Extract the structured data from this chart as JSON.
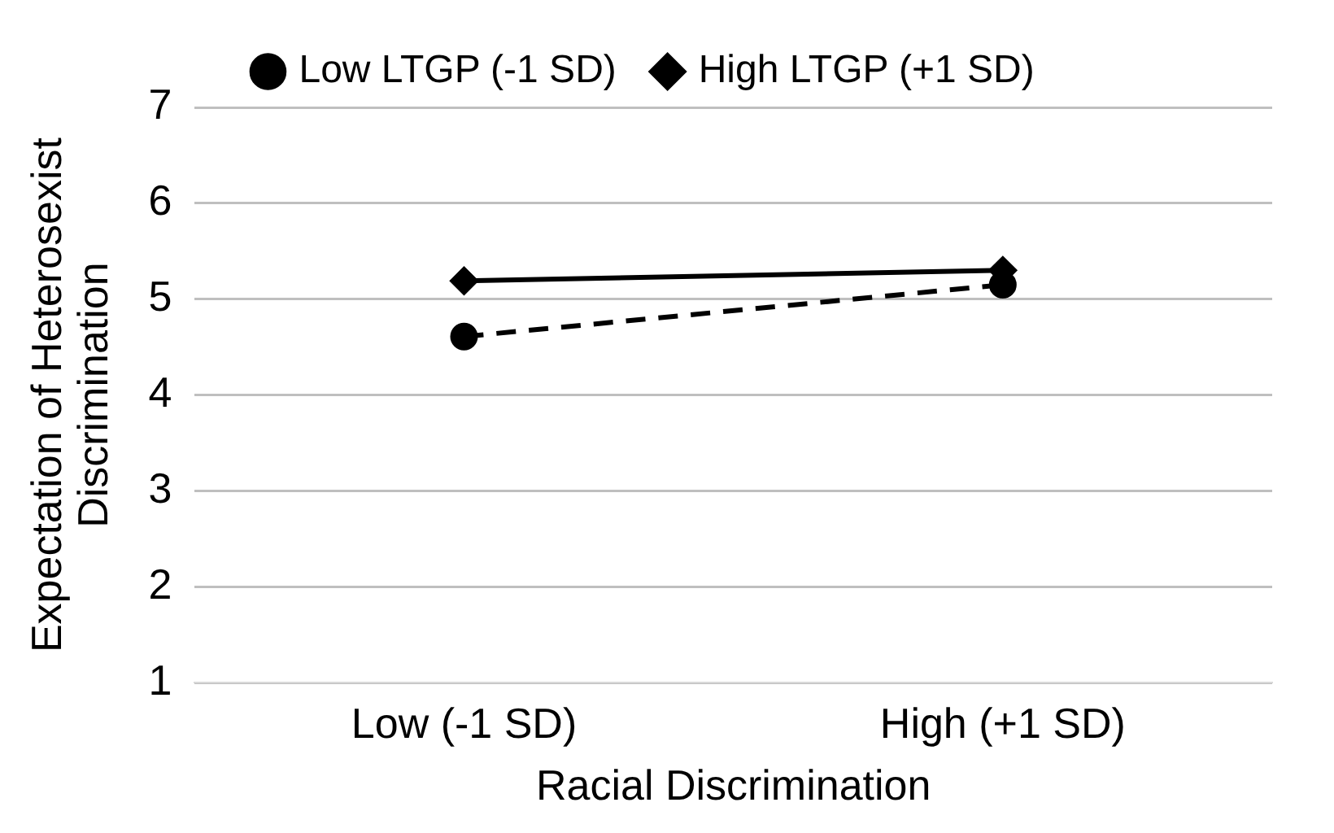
{
  "chart_data": {
    "type": "line",
    "xlabel": "Racial Discrimination",
    "ylabel": "Expectation of Heterosexist Discrimination",
    "categories": [
      "Low (-1 SD)",
      "High (+1 SD)"
    ],
    "series": [
      {
        "name": "Low LTGP (-1 SD)",
        "color": "#000000",
        "values": [
          4.61,
          5.15
        ],
        "marker": "circle",
        "line_style": "dashed"
      },
      {
        "name": "High LTGP (+1 SD)",
        "color": "#000000",
        "values": [
          5.19,
          5.3
        ],
        "marker": "diamond",
        "line_style": "solid"
      }
    ],
    "ylim": [
      1,
      7
    ],
    "yticks": [
      1,
      2,
      3,
      4,
      5,
      6,
      7
    ],
    "grid": "y",
    "legend": "top"
  }
}
